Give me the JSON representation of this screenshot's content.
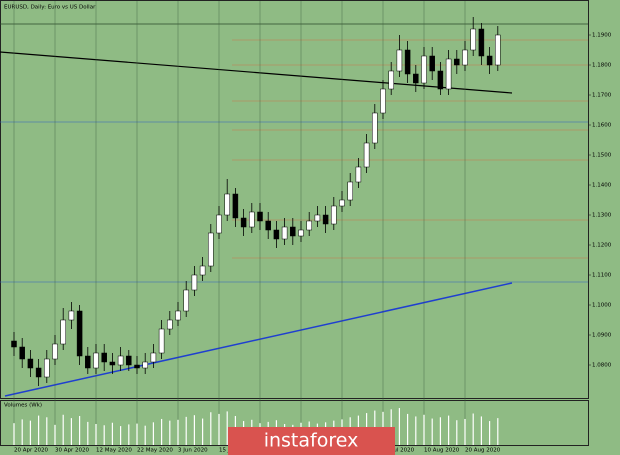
{
  "chart_data": {
    "type": "candlestick",
    "title": "EURUSD, Daily: Euro vs US Dollar",
    "categories": [
      "20 Apr 2020",
      null,
      null,
      null,
      null,
      "30 Apr 2020",
      null,
      null,
      null,
      null,
      "12 May 2020",
      null,
      null,
      null,
      null,
      "22 May 2020",
      null,
      null,
      null,
      null,
      "3 Jun 2020",
      null,
      null,
      null,
      null,
      "15 Jun 2020",
      null,
      null,
      null,
      null,
      "25 Jun 2020",
      null,
      null,
      null,
      null,
      "7 Jul 2020",
      null,
      null,
      null,
      null,
      "17 Jul 2020",
      null,
      null,
      null,
      null,
      "29 Jul 2020",
      null,
      null,
      null,
      null,
      "10 Aug 2020",
      null,
      null,
      null,
      null,
      "20 Aug 2020",
      null,
      null,
      null,
      null
    ],
    "open": [
      1.088,
      1.086,
      1.082,
      1.079,
      1.076,
      1.082,
      1.087,
      1.095,
      1.098,
      1.083,
      1.079,
      1.084,
      1.081,
      1.08,
      1.083,
      1.08,
      1.079,
      1.081,
      1.084,
      1.092,
      1.095,
      1.098,
      1.105,
      1.11,
      1.113,
      1.124,
      1.13,
      1.137,
      1.129,
      1.126,
      1.131,
      1.128,
      1.125,
      1.122,
      1.126,
      1.123,
      1.125,
      1.128,
      1.13,
      1.127,
      1.133,
      1.135,
      1.141,
      1.146,
      1.154,
      1.164,
      1.172,
      1.178,
      1.185,
      1.177,
      1.174,
      1.183,
      1.178,
      1.172,
      1.182,
      1.18,
      1.185,
      1.192,
      1.183,
      1.18
    ],
    "high": [
      1.091,
      1.089,
      1.085,
      1.082,
      1.085,
      1.09,
      1.099,
      1.101,
      1.1,
      1.086,
      1.087,
      1.087,
      1.084,
      1.086,
      1.085,
      1.083,
      1.084,
      1.087,
      1.095,
      1.098,
      1.101,
      1.108,
      1.113,
      1.116,
      1.127,
      1.133,
      1.142,
      1.139,
      1.132,
      1.134,
      1.134,
      1.131,
      1.128,
      1.129,
      1.129,
      1.128,
      1.131,
      1.133,
      1.133,
      1.136,
      1.138,
      1.144,
      1.149,
      1.157,
      1.167,
      1.175,
      1.181,
      1.19,
      1.188,
      1.18,
      1.186,
      1.186,
      1.181,
      1.185,
      1.185,
      1.188,
      1.196,
      1.194,
      1.186,
      1.193
    ],
    "low": [
      1.083,
      1.079,
      1.076,
      1.073,
      1.074,
      1.08,
      1.085,
      1.092,
      1.08,
      1.077,
      1.077,
      1.078,
      1.077,
      1.078,
      1.078,
      1.077,
      1.077,
      1.079,
      1.082,
      1.09,
      1.093,
      1.096,
      1.103,
      1.108,
      1.111,
      1.122,
      1.128,
      1.126,
      1.123,
      1.124,
      1.125,
      1.122,
      1.119,
      1.12,
      1.12,
      1.121,
      1.123,
      1.126,
      1.124,
      1.125,
      1.131,
      1.133,
      1.139,
      1.144,
      1.152,
      1.162,
      1.17,
      1.176,
      1.174,
      1.171,
      1.172,
      1.175,
      1.17,
      1.17,
      1.177,
      1.178,
      1.183,
      1.18,
      1.177,
      1.178
    ],
    "close": [
      1.086,
      1.082,
      1.079,
      1.076,
      1.082,
      1.087,
      1.095,
      1.098,
      1.083,
      1.079,
      1.084,
      1.081,
      1.08,
      1.083,
      1.08,
      1.079,
      1.081,
      1.084,
      1.092,
      1.095,
      1.098,
      1.105,
      1.11,
      1.113,
      1.124,
      1.13,
      1.137,
      1.129,
      1.126,
      1.131,
      1.128,
      1.125,
      1.122,
      1.126,
      1.123,
      1.125,
      1.128,
      1.13,
      1.127,
      1.133,
      1.135,
      1.141,
      1.146,
      1.154,
      1.164,
      1.172,
      1.178,
      1.185,
      1.177,
      1.174,
      1.183,
      1.178,
      1.172,
      1.182,
      1.18,
      1.185,
      1.192,
      1.183,
      1.18,
      1.19
    ],
    "ylim": [
      1.07,
      1.2
    ],
    "yticks": [
      {
        "value": 1.08,
        "label": "1.0800"
      },
      {
        "value": 1.09,
        "label": "1.0900"
      },
      {
        "value": 1.1,
        "label": "1.1000"
      },
      {
        "value": 1.11,
        "label": "1.1100"
      },
      {
        "value": 1.12,
        "label": "1.1200"
      },
      {
        "value": 1.13,
        "label": "1.1300"
      },
      {
        "value": 1.14,
        "label": "1.1400"
      },
      {
        "value": 1.15,
        "label": "1.1500"
      },
      {
        "value": 1.16,
        "label": "1.1600"
      },
      {
        "value": 1.17,
        "label": "1.1700"
      },
      {
        "value": 1.18,
        "label": "1.1800"
      },
      {
        "value": 1.19,
        "label": "1.1900"
      }
    ],
    "bull_color": "#ffffff",
    "bear_color": "#000000",
    "volume": {
      "label": "Volumes (Wk)",
      "ylim": [
        0,
        100000
      ],
      "color": "#ffffff",
      "values": [
        52000,
        61000,
        58000,
        70000,
        66000,
        48000,
        72000,
        64000,
        69000,
        55000,
        50000,
        47000,
        53000,
        45000,
        49000,
        51000,
        46000,
        54000,
        62000,
        58000,
        60000,
        67000,
        71000,
        63000,
        78000,
        74000,
        80000,
        69000,
        57000,
        60000,
        52000,
        55000,
        59000,
        50000,
        48000,
        53000,
        56000,
        51000,
        54000,
        58000,
        61000,
        66000,
        70000,
        76000,
        82000,
        79000,
        85000,
        88000,
        74000,
        68000,
        72000,
        63000,
        66000,
        70000,
        59000,
        62000,
        75000,
        68000,
        57000,
        64000
      ]
    }
  },
  "watermark": "instaforex"
}
